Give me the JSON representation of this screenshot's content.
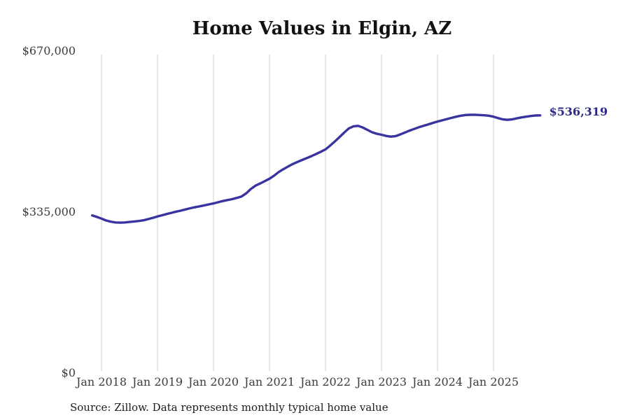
{
  "chart": {
    "title": "Home Values in Elgin, AZ",
    "latest_value_label": "$536,319",
    "source_note": "Source: Zillow. Data represents monthly typical home value",
    "colors": {
      "line": "#3a34a0",
      "latest_label": "#2d2a87",
      "gridline": "#cccccc",
      "axis_text": "#3b3b3b",
      "title_text": "#111111",
      "background": "#ffffff"
    }
  },
  "chart_data": {
    "type": "line",
    "title": "Home Values in Elgin, AZ",
    "xlabel": "",
    "ylabel": "",
    "ylim": [
      0,
      670000
    ],
    "grid": "vertical-only",
    "legend": "none",
    "source_note": "Source: Zillow. Data represents monthly typical home value",
    "yticks": [
      {
        "label": "$670,000",
        "value": 670000
      },
      {
        "label": "$335,000",
        "value": 335000
      },
      {
        "label": "$0",
        "value": 0
      }
    ],
    "xticks": [
      {
        "label": "Jan 2018",
        "year": 2018
      },
      {
        "label": "Jan 2019",
        "year": 2019
      },
      {
        "label": "Jan 2020",
        "year": 2020
      },
      {
        "label": "Jan 2021",
        "year": 2021
      },
      {
        "label": "Jan 2022",
        "year": 2022
      },
      {
        "label": "Jan 2023",
        "year": 2023
      },
      {
        "label": "Jan 2024",
        "year": 2024
      },
      {
        "label": "Jan 2025",
        "year": 2025
      }
    ],
    "annotation": {
      "text": "$536,319",
      "value": 536319,
      "month": "2025-11"
    },
    "series": [
      {
        "name": "Typical home value",
        "x": [
          "2017-11",
          "2017-12",
          "2018-01",
          "2018-02",
          "2018-03",
          "2018-04",
          "2018-05",
          "2018-06",
          "2018-07",
          "2018-08",
          "2018-09",
          "2018-10",
          "2018-11",
          "2018-12",
          "2019-01",
          "2019-02",
          "2019-03",
          "2019-04",
          "2019-05",
          "2019-06",
          "2019-07",
          "2019-08",
          "2019-09",
          "2019-10",
          "2019-11",
          "2019-12",
          "2020-01",
          "2020-02",
          "2020-03",
          "2020-04",
          "2020-05",
          "2020-06",
          "2020-07",
          "2020-08",
          "2020-09",
          "2020-10",
          "2020-11",
          "2020-12",
          "2021-01",
          "2021-02",
          "2021-03",
          "2021-04",
          "2021-05",
          "2021-06",
          "2021-07",
          "2021-08",
          "2021-09",
          "2021-10",
          "2021-11",
          "2021-12",
          "2022-01",
          "2022-02",
          "2022-03",
          "2022-04",
          "2022-05",
          "2022-06",
          "2022-07",
          "2022-08",
          "2022-09",
          "2022-10",
          "2022-11",
          "2022-12",
          "2023-01",
          "2023-02",
          "2023-03",
          "2023-04",
          "2023-05",
          "2023-06",
          "2023-07",
          "2023-08",
          "2023-09",
          "2023-10",
          "2023-11",
          "2023-12",
          "2024-01",
          "2024-02",
          "2024-03",
          "2024-04",
          "2024-05",
          "2024-06",
          "2024-07",
          "2024-08",
          "2024-09",
          "2024-10",
          "2024-11",
          "2024-12",
          "2025-01",
          "2025-02",
          "2025-03",
          "2025-04",
          "2025-05",
          "2025-06",
          "2025-07",
          "2025-08",
          "2025-09",
          "2025-10",
          "2025-11"
        ],
        "values": [
          328000,
          325000,
          321500,
          317500,
          315000,
          313500,
          313000,
          313500,
          314500,
          315500,
          316500,
          318000,
          320500,
          323000,
          326000,
          328500,
          331000,
          333500,
          336000,
          338000,
          340500,
          343000,
          345000,
          347000,
          349000,
          351000,
          353000,
          355500,
          358000,
          360000,
          362000,
          364500,
          367500,
          374000,
          383000,
          390000,
          394500,
          399500,
          404500,
          411000,
          418500,
          424500,
          430000,
          435000,
          439500,
          443500,
          447500,
          451500,
          456000,
          460500,
          465500,
          473500,
          482000,
          491000,
          500500,
          509000,
          513500,
          514500,
          511000,
          506000,
          501000,
          498000,
          496000,
          493500,
          492000,
          493000,
          496500,
          500500,
          504500,
          508000,
          511500,
          514500,
          517500,
          520500,
          523500,
          526000,
          528500,
          531000,
          533500,
          535500,
          537000,
          537500,
          537500,
          537000,
          536500,
          535500,
          533500,
          530500,
          528000,
          527000,
          528000,
          530000,
          532000,
          533500,
          535000,
          536000,
          536319
        ]
      }
    ]
  }
}
